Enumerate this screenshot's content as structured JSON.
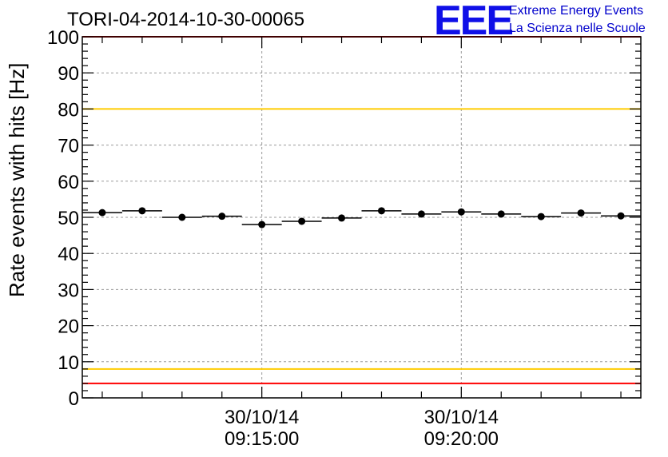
{
  "chart_data": {
    "type": "scatter",
    "title": "TORI-04-2014-10-30-00065",
    "ylabel": "Rate events with hits [Hz]",
    "xlabel": "",
    "ylim": [
      0,
      100
    ],
    "yticks": [
      0,
      10,
      20,
      30,
      40,
      50,
      60,
      70,
      80,
      90,
      100
    ],
    "x_range_minutes": [
      0,
      14
    ],
    "x_tick_labels": [
      {
        "at_minute": 4.5,
        "date": "30/10/14",
        "time": "09:15:00"
      },
      {
        "at_minute": 9.5,
        "date": "30/10/14",
        "time": "09:20:00"
      }
    ],
    "bin_width_minutes": 1,
    "series": [
      {
        "name": "rate",
        "bin_centers_minutes": [
          0.5,
          1.5,
          2.5,
          3.5,
          4.5,
          5.5,
          6.5,
          7.5,
          8.5,
          9.5,
          10.5,
          11.5,
          12.5,
          13.5
        ],
        "values": [
          51.3,
          51.8,
          50.0,
          50.3,
          48.0,
          48.9,
          49.8,
          51.8,
          50.9,
          51.5,
          50.9,
          50.2,
          51.2,
          50.4
        ]
      }
    ],
    "reference_lines": [
      {
        "name": "upper-red-limit",
        "value": 100,
        "color": "#ff0000"
      },
      {
        "name": "upper-yellow-limit",
        "value": 80,
        "color": "#ffcc00"
      },
      {
        "name": "lower-yellow-limit",
        "value": 8,
        "color": "#ffcc00"
      },
      {
        "name": "lower-red-limit",
        "value": 4,
        "color": "#ff0000"
      }
    ],
    "grid": true
  },
  "logo": {
    "text": "EEE",
    "line1": "Extreme Energy Events",
    "line2": "La Scienza nelle Scuole",
    "color": "#1010e8"
  }
}
